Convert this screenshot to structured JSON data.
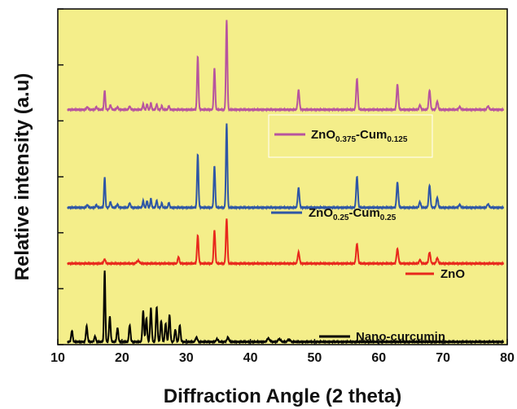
{
  "colors": {
    "plot_background": "#f4ee8a",
    "nano_curcumin": "#000000",
    "zno": "#e8281c",
    "zno025": "#2e56a6",
    "zno0375": "#b7549f"
  },
  "chart_data": {
    "type": "line",
    "xlabel": "Diffraction Angle (2 theta)",
    "ylabel": "Relative intensity (a.u)",
    "xlim": [
      10,
      80
    ],
    "ylim": [
      0,
      6
    ],
    "x_ticks": [
      10,
      20,
      30,
      40,
      50,
      60,
      70,
      80
    ],
    "x_tick_labels": [
      "10",
      "20",
      "30",
      "40",
      "50",
      "60",
      "70",
      "80"
    ],
    "y_ticks": [
      0,
      1,
      2,
      3,
      4,
      5,
      6
    ],
    "y_ticks_labeled": false,
    "grid": false,
    "series": [
      {
        "key": "nano_curcumin",
        "legend_main": "Nano-curcumin",
        "legend_parts": [],
        "baseline": 0.05,
        "peaks": [
          [
            12.2,
            0.2,
            0.12
          ],
          [
            14.5,
            0.28,
            0.12
          ],
          [
            15.8,
            0.1,
            0.12
          ],
          [
            17.3,
            1.28,
            0.1
          ],
          [
            18.1,
            0.45,
            0.12
          ],
          [
            19.3,
            0.25,
            0.12
          ],
          [
            21.2,
            0.3,
            0.12
          ],
          [
            23.3,
            0.55,
            0.12
          ],
          [
            23.8,
            0.42,
            0.12
          ],
          [
            24.5,
            0.6,
            0.12
          ],
          [
            25.4,
            0.62,
            0.12
          ],
          [
            26.1,
            0.38,
            0.12
          ],
          [
            26.8,
            0.33,
            0.12
          ],
          [
            27.4,
            0.48,
            0.12
          ],
          [
            28.3,
            0.22,
            0.12
          ],
          [
            29.0,
            0.3,
            0.12
          ],
          [
            31.6,
            0.08,
            0.15
          ],
          [
            34.8,
            0.05,
            0.15
          ],
          [
            36.5,
            0.08,
            0.15
          ],
          [
            42.8,
            0.06,
            0.2
          ],
          [
            44.5,
            0.05,
            0.2
          ],
          [
            46.0,
            0.04,
            0.2
          ]
        ]
      },
      {
        "key": "zno",
        "legend_main": "ZnO",
        "legend_parts": [],
        "baseline": 1.45,
        "peaks": [
          [
            17.3,
            0.07,
            0.15
          ],
          [
            22.5,
            0.05,
            0.2
          ],
          [
            28.8,
            0.12,
            0.12
          ],
          [
            31.8,
            0.5,
            0.12
          ],
          [
            34.4,
            0.6,
            0.12
          ],
          [
            36.3,
            0.8,
            0.12
          ],
          [
            47.5,
            0.2,
            0.14
          ],
          [
            56.6,
            0.35,
            0.14
          ],
          [
            62.9,
            0.26,
            0.14
          ],
          [
            66.4,
            0.06,
            0.14
          ],
          [
            67.9,
            0.2,
            0.14
          ],
          [
            69.1,
            0.1,
            0.14
          ]
        ]
      },
      {
        "key": "zno025",
        "legend_main": "",
        "legend_parts": [
          [
            "ZnO",
            "main"
          ],
          [
            "0.25",
            "sub"
          ],
          [
            "-Cum",
            "main"
          ],
          [
            "0.25",
            "sub"
          ]
        ],
        "baseline": 2.45,
        "peaks": [
          [
            14.6,
            0.05,
            0.12
          ],
          [
            16.0,
            0.05,
            0.12
          ],
          [
            17.3,
            0.55,
            0.1
          ],
          [
            18.2,
            0.1,
            0.12
          ],
          [
            19.3,
            0.06,
            0.12
          ],
          [
            21.2,
            0.08,
            0.12
          ],
          [
            23.3,
            0.12,
            0.1
          ],
          [
            23.9,
            0.12,
            0.1
          ],
          [
            24.5,
            0.16,
            0.1
          ],
          [
            25.4,
            0.13,
            0.1
          ],
          [
            26.2,
            0.08,
            0.1
          ],
          [
            27.3,
            0.09,
            0.1
          ],
          [
            31.8,
            0.95,
            0.11
          ],
          [
            34.4,
            0.75,
            0.11
          ],
          [
            36.3,
            1.5,
            0.11
          ],
          [
            47.5,
            0.35,
            0.13
          ],
          [
            56.6,
            0.55,
            0.13
          ],
          [
            62.9,
            0.45,
            0.13
          ],
          [
            66.4,
            0.1,
            0.13
          ],
          [
            67.9,
            0.4,
            0.13
          ],
          [
            69.1,
            0.18,
            0.13
          ],
          [
            72.6,
            0.05,
            0.15
          ],
          [
            77.0,
            0.06,
            0.15
          ]
        ]
      },
      {
        "key": "zno0375",
        "legend_main": "",
        "legend_parts": [
          [
            "ZnO",
            "main"
          ],
          [
            "0.375",
            "sub"
          ],
          [
            "-Cum",
            "main"
          ],
          [
            "0.125",
            "sub"
          ]
        ],
        "baseline": 4.2,
        "peaks": [
          [
            14.6,
            0.05,
            0.12
          ],
          [
            16.0,
            0.05,
            0.12
          ],
          [
            17.3,
            0.35,
            0.1
          ],
          [
            18.2,
            0.08,
            0.12
          ],
          [
            19.3,
            0.05,
            0.12
          ],
          [
            21.2,
            0.06,
            0.12
          ],
          [
            23.3,
            0.1,
            0.1
          ],
          [
            23.9,
            0.1,
            0.1
          ],
          [
            24.5,
            0.12,
            0.1
          ],
          [
            25.4,
            0.1,
            0.1
          ],
          [
            26.2,
            0.07,
            0.1
          ],
          [
            27.3,
            0.07,
            0.1
          ],
          [
            31.8,
            0.95,
            0.11
          ],
          [
            34.4,
            0.75,
            0.11
          ],
          [
            36.3,
            1.6,
            0.11
          ],
          [
            47.5,
            0.35,
            0.13
          ],
          [
            56.6,
            0.55,
            0.13
          ],
          [
            62.9,
            0.45,
            0.13
          ],
          [
            66.4,
            0.08,
            0.13
          ],
          [
            67.9,
            0.35,
            0.13
          ],
          [
            69.1,
            0.15,
            0.13
          ],
          [
            72.6,
            0.05,
            0.15
          ],
          [
            77.0,
            0.06,
            0.15
          ]
        ]
      }
    ]
  }
}
